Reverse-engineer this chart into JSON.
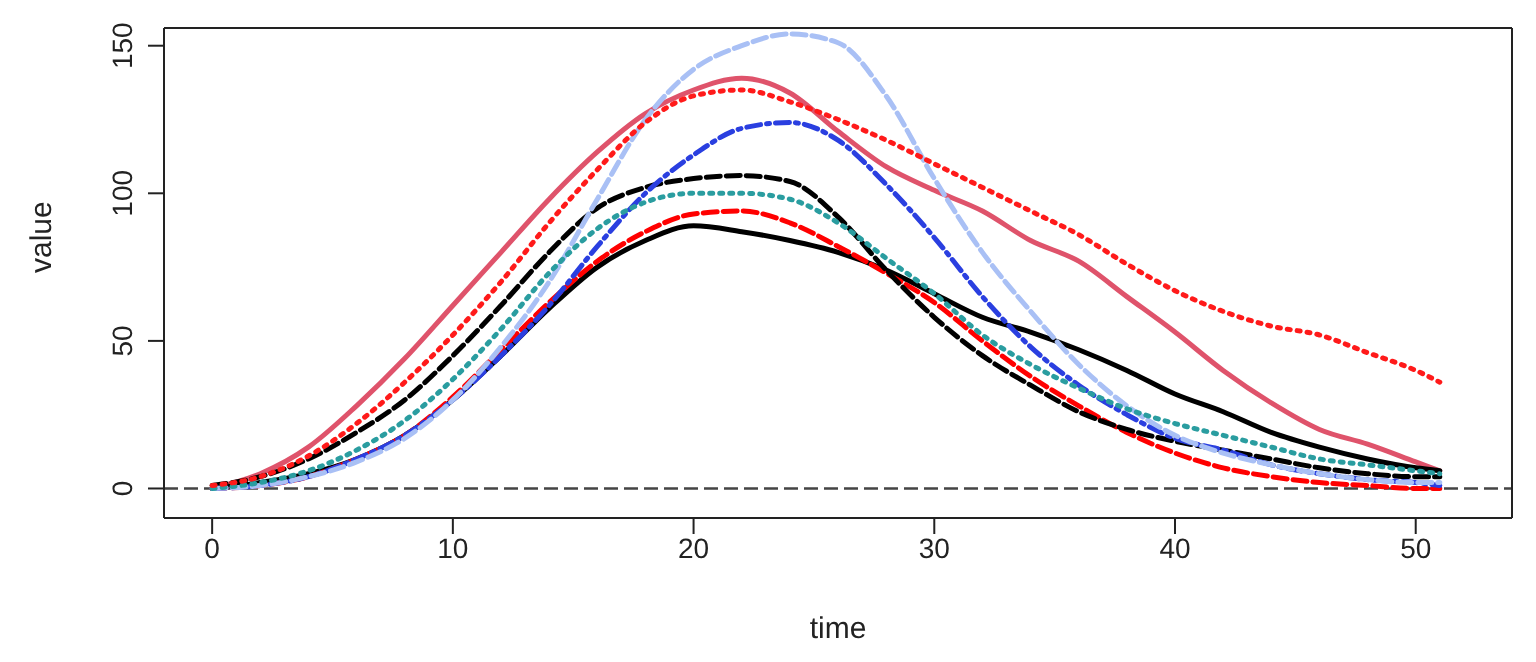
{
  "chart_data": {
    "type": "line",
    "xlabel": "time",
    "ylabel": "value",
    "x": [
      0,
      2,
      4,
      6,
      8,
      10,
      12,
      14,
      16,
      18,
      20,
      22,
      24,
      26,
      28,
      30,
      32,
      34,
      36,
      38,
      40,
      42,
      44,
      46,
      48,
      50,
      51
    ],
    "xlim": [
      -2,
      54
    ],
    "ylim": [
      -10,
      156
    ],
    "xticks": [
      0,
      10,
      20,
      30,
      40,
      50
    ],
    "yticks": [
      0,
      50,
      100,
      150
    ],
    "grid": false,
    "legend": false,
    "series": [
      {
        "color": "#000000",
        "line_style": "solid",
        "values": [
          0,
          2,
          5,
          10,
          18,
          30,
          45,
          61,
          75,
          84,
          89,
          87,
          84,
          80,
          74,
          66,
          58,
          53,
          47,
          40,
          32,
          26,
          19,
          14,
          10,
          7,
          6
        ]
      },
      {
        "color": "#df536b",
        "line_style": "solid",
        "values": [
          0,
          5,
          14,
          28,
          44,
          62,
          80,
          98,
          114,
          127,
          135,
          139,
          134,
          121,
          109,
          101,
          94,
          84,
          77,
          65,
          53,
          40,
          29,
          20,
          15,
          9,
          6
        ]
      },
      {
        "color": "#ff1a1a",
        "line_style": "dotted",
        "values": [
          1,
          4,
          11,
          22,
          36,
          52,
          70,
          90,
          108,
          124,
          133,
          135,
          131,
          125,
          118,
          110,
          102,
          94,
          86,
          76,
          67,
          60,
          55,
          52,
          46,
          40,
          36
        ]
      },
      {
        "color": "#a9c0f5",
        "line_style": "dashed",
        "values": [
          0,
          1,
          4,
          9,
          17,
          30,
          48,
          70,
          98,
          125,
          142,
          150,
          154,
          151,
          133,
          105,
          80,
          60,
          42,
          28,
          18,
          12,
          8,
          5,
          3,
          2,
          2
        ]
      },
      {
        "color": "#2a3fe0",
        "line_style": "dashdot",
        "values": [
          0,
          1,
          4,
          10,
          18,
          30,
          45,
          62,
          82,
          100,
          113,
          122,
          124,
          118,
          103,
          85,
          65,
          48,
          35,
          25,
          17,
          13,
          8,
          5,
          3,
          2,
          1
        ]
      },
      {
        "color": "#000000",
        "line_style": "dashed",
        "values": [
          1,
          4,
          10,
          19,
          30,
          45,
          62,
          80,
          95,
          102,
          105,
          106,
          104,
          92,
          74,
          58,
          45,
          35,
          26,
          20,
          16,
          13,
          10,
          7,
          5,
          4,
          4
        ]
      },
      {
        "color": "#2a9da0",
        "line_style": "dotted",
        "values": [
          0,
          2,
          6,
          13,
          23,
          37,
          54,
          73,
          88,
          97,
          100,
          100,
          98,
          90,
          78,
          66,
          52,
          42,
          34,
          27,
          22,
          18,
          14,
          10,
          8,
          6,
          5
        ]
      },
      {
        "color": "#ff0000",
        "line_style": "dashed",
        "values": [
          0,
          1,
          4,
          10,
          18,
          31,
          47,
          63,
          77,
          87,
          93,
          94,
          90,
          82,
          73,
          63,
          50,
          38,
          28,
          19,
          12,
          7,
          4,
          2,
          1,
          0,
          0
        ]
      }
    ],
    "ref_lines": [
      {
        "axis": "y",
        "value": 0,
        "color": "#444444",
        "line_style": "dashed"
      }
    ]
  }
}
